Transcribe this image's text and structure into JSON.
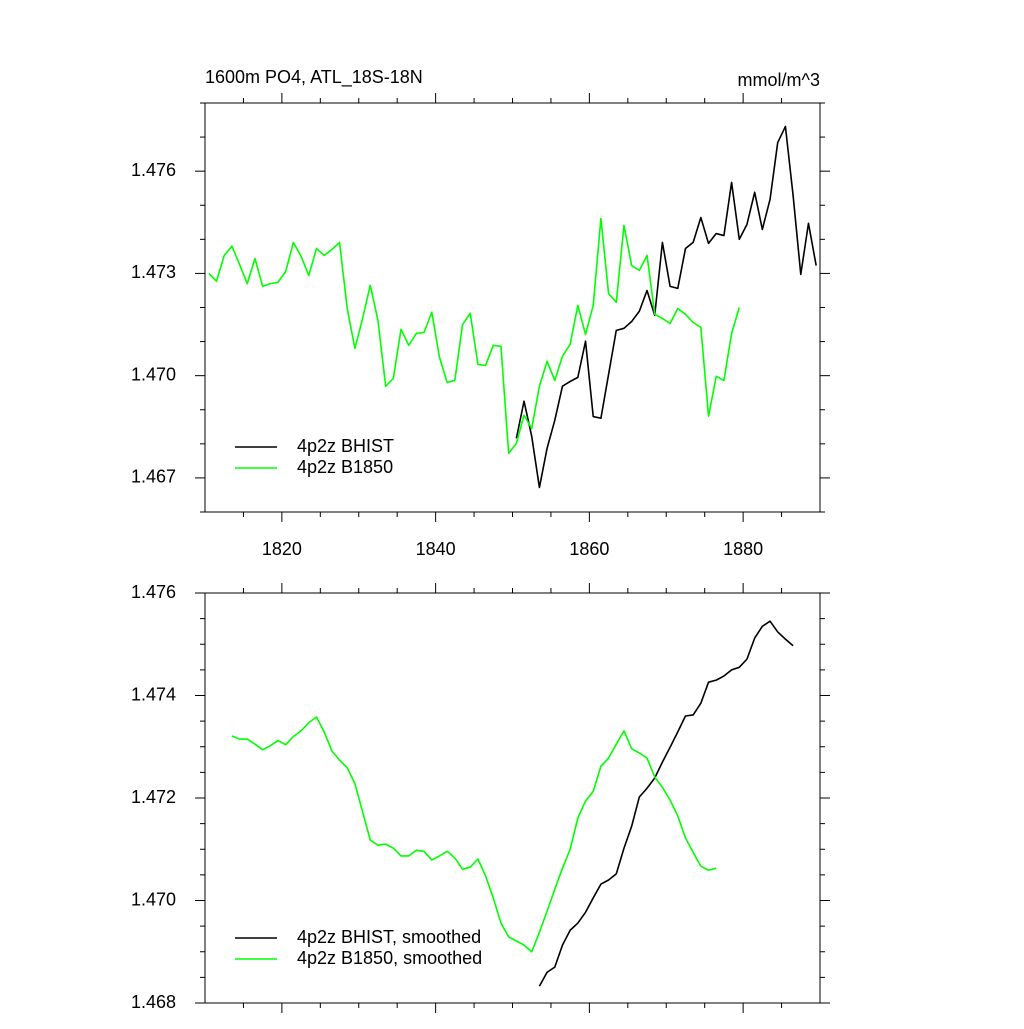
{
  "chart_data": [
    {
      "type": "line",
      "title": "1600m PO4, ATL_18S-18N",
      "units": "mmol/m^3",
      "xlim": [
        1810,
        1890
      ],
      "xticks": [
        1820,
        1840,
        1860,
        1880
      ],
      "xminorticks": [
        1815,
        1825,
        1830,
        1835,
        1845,
        1850,
        1855,
        1865,
        1870,
        1875,
        1885
      ],
      "show_xtick_labels": true,
      "ylim": [
        1.466,
        1.478
      ],
      "yticks": [
        {
          "value": 1.467,
          "label": "1.467"
        },
        {
          "value": 1.47,
          "label": "1.470"
        },
        {
          "value": 1.473,
          "label": "1.473"
        },
        {
          "value": 1.476,
          "label": "1.476"
        }
      ],
      "yminorticks": [
        1.466,
        1.468,
        1.469,
        1.471,
        1.472,
        1.474,
        1.475,
        1.477,
        1.478
      ],
      "legend": "lower left",
      "series": [
        {
          "name": "4p2z BHIST",
          "color": "#000000",
          "x": [
            1850.5,
            1851.5,
            1852.5,
            1853.5,
            1854.5,
            1855.5,
            1856.5,
            1857.5,
            1858.5,
            1859.5,
            1860.5,
            1861.5,
            1862.5,
            1863.5,
            1864.5,
            1865.5,
            1866.5,
            1867.5,
            1868.5,
            1869.5,
            1870.5,
            1871.5,
            1872.5,
            1873.5,
            1874.5,
            1875.5,
            1876.5,
            1877.5,
            1878.5,
            1879.5,
            1880.5,
            1881.5,
            1882.5,
            1883.5,
            1884.5,
            1885.5,
            1886.5,
            1887.5,
            1888.5,
            1889.5
          ],
          "values": [
            1.46816,
            1.46925,
            1.46822,
            1.46672,
            1.46787,
            1.46869,
            1.46969,
            1.46983,
            1.46995,
            1.47101,
            1.4688,
            1.46875,
            1.47004,
            1.47133,
            1.47139,
            1.47159,
            1.47189,
            1.4725,
            1.47177,
            1.47391,
            1.47262,
            1.47256,
            1.47373,
            1.47391,
            1.47464,
            1.47388,
            1.47417,
            1.47411,
            1.47567,
            1.474,
            1.47444,
            1.47538,
            1.47429,
            1.47517,
            1.47684,
            1.47731,
            1.47529,
            1.47297,
            1.47447,
            1.47323
          ]
        },
        {
          "name": "4p2z B1850",
          "color": "#00ff00",
          "x": [
            1810.5,
            1811.5,
            1812.5,
            1813.5,
            1814.5,
            1815.5,
            1816.5,
            1817.5,
            1818.5,
            1819.5,
            1820.5,
            1821.5,
            1822.5,
            1823.5,
            1824.5,
            1825.5,
            1826.5,
            1827.5,
            1828.5,
            1829.5,
            1830.5,
            1831.5,
            1832.5,
            1833.5,
            1834.5,
            1835.5,
            1836.5,
            1837.5,
            1838.5,
            1839.5,
            1840.5,
            1841.5,
            1842.5,
            1843.5,
            1844.5,
            1845.5,
            1846.5,
            1847.5,
            1848.5,
            1849.5,
            1850.5,
            1851.5,
            1852.5,
            1853.5,
            1854.5,
            1855.5,
            1856.5,
            1857.5,
            1858.5,
            1859.5,
            1860.5,
            1861.5,
            1862.5,
            1863.5,
            1864.5,
            1865.5,
            1866.5,
            1867.5,
            1868.5,
            1869.5,
            1870.5,
            1871.5,
            1872.5,
            1873.5,
            1874.5,
            1875.5,
            1876.5,
            1877.5,
            1878.5,
            1879.5
          ],
          "values": [
            1.473,
            1.47277,
            1.47353,
            1.4738,
            1.47326,
            1.4727,
            1.47344,
            1.47262,
            1.4727,
            1.47274,
            1.47306,
            1.47391,
            1.4735,
            1.47294,
            1.47373,
            1.47353,
            1.4737,
            1.47391,
            1.47197,
            1.4708,
            1.47168,
            1.47265,
            1.47162,
            1.46969,
            1.46992,
            1.47136,
            1.47089,
            1.47124,
            1.47127,
            1.47186,
            1.47054,
            1.4698,
            1.46986,
            1.4715,
            1.47183,
            1.47033,
            1.4703,
            1.47089,
            1.47086,
            1.46772,
            1.46801,
            1.46884,
            1.46845,
            1.46969,
            1.47042,
            1.46986,
            1.47057,
            1.47092,
            1.47206,
            1.47121,
            1.47206,
            1.47461,
            1.47241,
            1.47215,
            1.47441,
            1.47323,
            1.47309,
            1.47353,
            1.4718,
            1.47168,
            1.47153,
            1.47197,
            1.4718,
            1.47156,
            1.47142,
            1.46881,
            1.46998,
            1.46986,
            1.47124,
            1.472
          ]
        }
      ]
    },
    {
      "type": "line",
      "xlim": [
        1810,
        1890
      ],
      "xticks": [
        1820,
        1840,
        1860,
        1880
      ],
      "xminorticks": [
        1815,
        1825,
        1830,
        1835,
        1845,
        1850,
        1855,
        1865,
        1870,
        1875,
        1885
      ],
      "show_xtick_labels": false,
      "ylim": [
        1.468,
        1.476
      ],
      "yticks": [
        1.468,
        {
          "value": 1.47,
          "label": "1.470"
        },
        1.472,
        1.474,
        1.476
      ],
      "yminorticks": [
        1.4685,
        1.469,
        1.4695,
        1.4705,
        1.471,
        1.4715,
        1.4725,
        1.473,
        1.4735,
        1.4745,
        1.475,
        1.4755
      ],
      "legend": "lower left",
      "series": [
        {
          "name": "4p2z BHIST, smoothed",
          "color": "#000000",
          "x": [
            1853.5,
            1854.5,
            1855.5,
            1856.5,
            1857.5,
            1858.5,
            1859.5,
            1860.5,
            1861.5,
            1862.5,
            1863.5,
            1864.5,
            1865.5,
            1866.5,
            1867.5,
            1868.5,
            1869.5,
            1870.5,
            1871.5,
            1872.5,
            1873.5,
            1874.5,
            1875.5,
            1876.5,
            1877.5,
            1878.5,
            1879.5,
            1880.5,
            1881.5,
            1882.5,
            1883.5,
            1884.5,
            1885.5,
            1886.5
          ],
          "values": [
            1.46833,
            1.4686,
            1.4687,
            1.46913,
            1.46942,
            1.46956,
            1.46977,
            1.47005,
            1.47032,
            1.4704,
            1.47052,
            1.47102,
            1.47145,
            1.47202,
            1.47219,
            1.47239,
            1.4727,
            1.47299,
            1.47329,
            1.4736,
            1.47362,
            1.47385,
            1.47426,
            1.4743,
            1.47438,
            1.4745,
            1.47455,
            1.47471,
            1.47512,
            1.47535,
            1.47545,
            1.47524,
            1.4751,
            1.47497
          ]
        },
        {
          "name": "4p2z B1850, smoothed",
          "color": "#00ff00",
          "x": [
            1813.5,
            1814.5,
            1815.5,
            1816.5,
            1817.5,
            1818.5,
            1819.5,
            1820.5,
            1821.5,
            1822.5,
            1823.5,
            1824.5,
            1825.5,
            1826.5,
            1827.5,
            1828.5,
            1829.5,
            1830.5,
            1831.5,
            1832.5,
            1833.5,
            1834.5,
            1835.5,
            1836.5,
            1837.5,
            1838.5,
            1839.5,
            1840.5,
            1841.5,
            1842.5,
            1843.5,
            1844.5,
            1845.5,
            1846.5,
            1847.5,
            1848.5,
            1849.5,
            1850.5,
            1851.5,
            1852.5,
            1853.5,
            1854.5,
            1855.5,
            1856.5,
            1857.5,
            1858.5,
            1859.5,
            1860.5,
            1861.5,
            1862.5,
            1863.5,
            1864.5,
            1865.5,
            1866.5,
            1867.5,
            1868.5,
            1869.5,
            1870.5,
            1871.5,
            1872.5,
            1873.5,
            1874.5,
            1875.5,
            1876.5
          ],
          "values": [
            1.47321,
            1.47315,
            1.47315,
            1.47305,
            1.47294,
            1.47302,
            1.47312,
            1.47304,
            1.4732,
            1.47331,
            1.47347,
            1.47358,
            1.47329,
            1.47292,
            1.47274,
            1.47259,
            1.47228,
            1.47173,
            1.47118,
            1.47108,
            1.4711,
            1.47102,
            1.47087,
            1.47087,
            1.47098,
            1.47096,
            1.47079,
            1.47087,
            1.47096,
            1.47083,
            1.47061,
            1.47065,
            1.47081,
            1.47048,
            1.47005,
            1.46956,
            1.46929,
            1.46921,
            1.46913,
            1.469,
            1.46938,
            1.46979,
            1.47022,
            1.47063,
            1.471,
            1.47161,
            1.47194,
            1.47213,
            1.47262,
            1.47278,
            1.47305,
            1.47331,
            1.47296,
            1.47288,
            1.47278,
            1.47241,
            1.47221,
            1.47196,
            1.47165,
            1.47122,
            1.47094,
            1.47067,
            1.47059,
            1.47063
          ]
        }
      ]
    }
  ]
}
